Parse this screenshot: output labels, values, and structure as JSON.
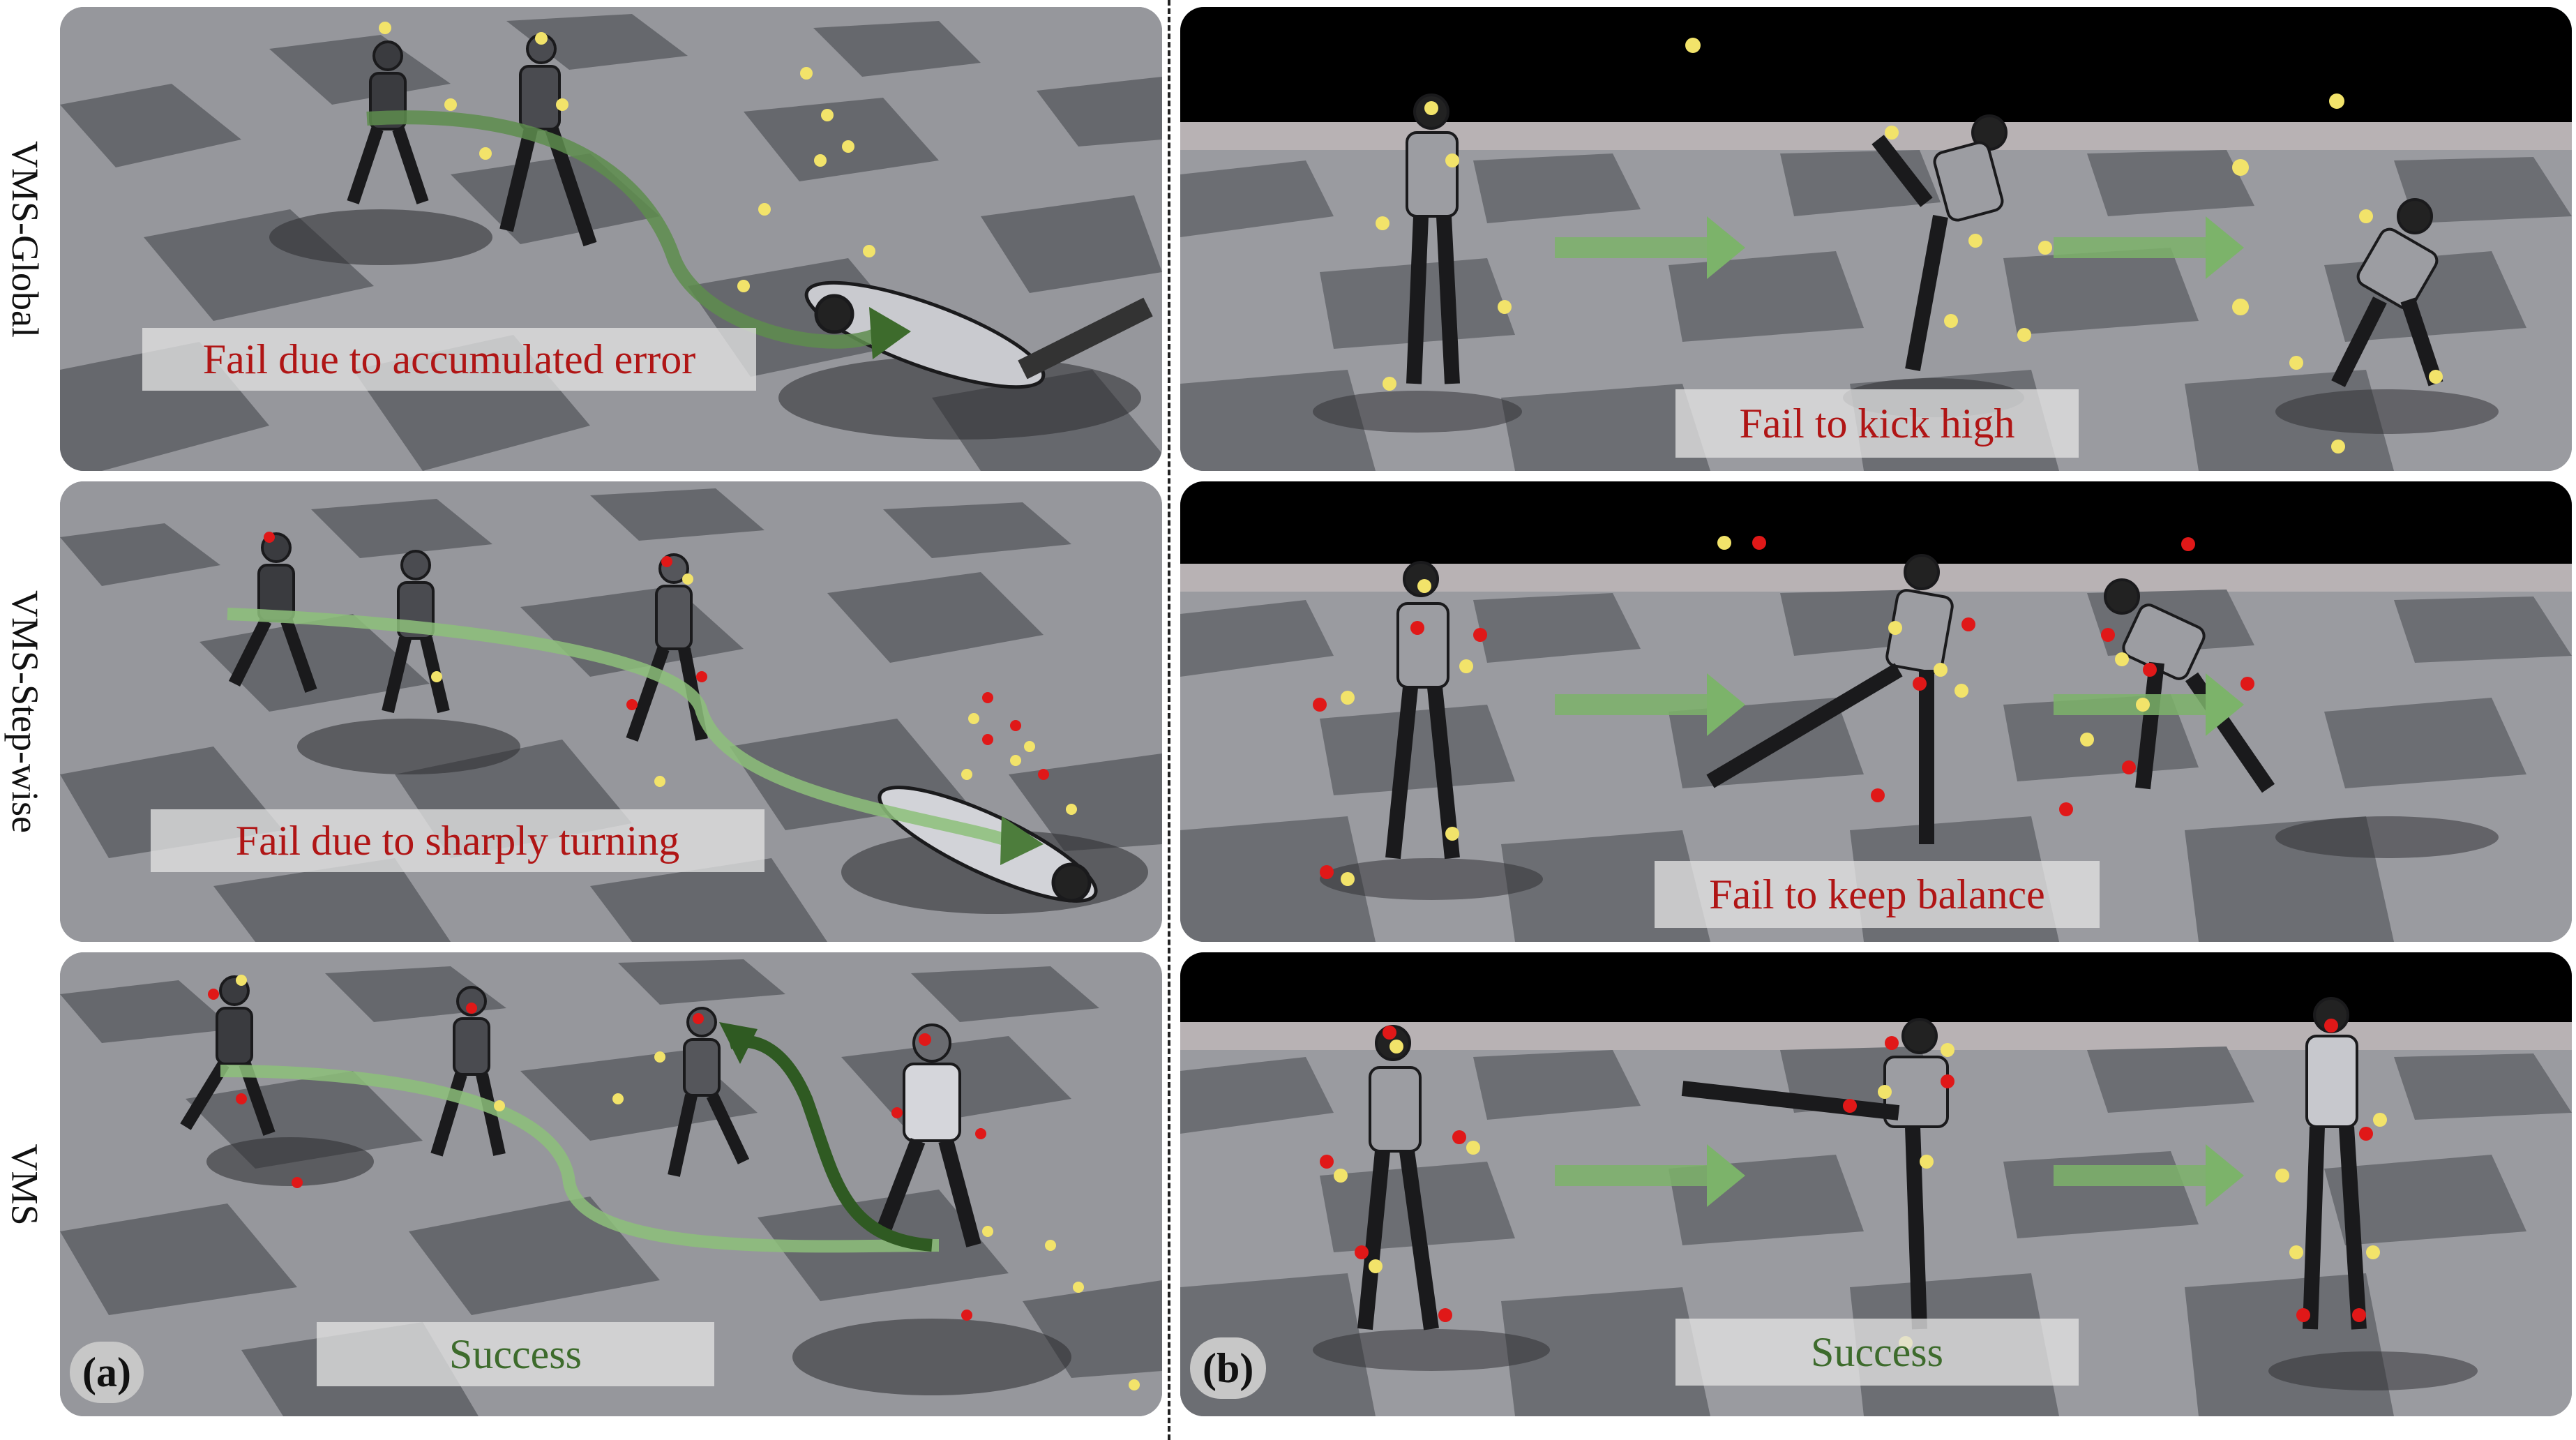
{
  "row_labels": [
    "VMS-Global",
    "VMS-Step-wise",
    "VMS"
  ],
  "panel_a": {
    "badge": "(a)",
    "captions": [
      "Fail due to accumulated error",
      "Fail due to sharply turning",
      "Success"
    ]
  },
  "panel_b": {
    "badge": "(b)",
    "captions": [
      "Fail to kick high",
      "Fail to keep balance",
      "Success"
    ]
  },
  "colors": {
    "floor_light": "#a7a8ac",
    "floor_dark": "#6e7075",
    "sky": "#000000",
    "arrow_green": "#7fb36a",
    "arrow_dark_green": "#2f5a22",
    "marker_yellow": "#f2e36a",
    "marker_red": "#e01818",
    "fail_text": "#b01515",
    "success_text": "#3d6b2c"
  },
  "icons": [
    "robot-figure",
    "trajectory-arrow",
    "keypoint-marker"
  ]
}
